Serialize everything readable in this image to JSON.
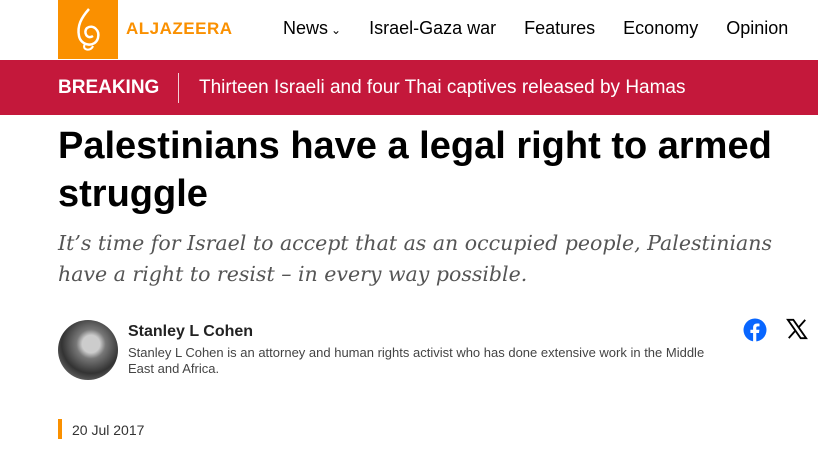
{
  "header": {
    "logo_text": "ALJAZEERA",
    "brand_color": "#fa9000",
    "nav": [
      {
        "label": "News",
        "has_dropdown": true
      },
      {
        "label": "Israel-Gaza war"
      },
      {
        "label": "Features"
      },
      {
        "label": "Economy"
      },
      {
        "label": "Opinion"
      }
    ]
  },
  "breaking": {
    "label": "BREAKING",
    "text": "Thirteen Israeli and four Thai captives released by Hamas",
    "color": "#c4183b"
  },
  "article": {
    "title": "Palestinians have a legal right to armed struggle",
    "subtitle": "It’s time for Israel to accept that as an occupied people, Palestinians have a right to resist – in every way possible.",
    "author": {
      "name": "Stanley L Cohen",
      "bio": "Stanley L Cohen is an attorney and human rights activist who has done extensive work in the Middle East and Africa."
    },
    "date": "20 Jul 2017"
  },
  "share": {
    "icons": [
      "facebook-icon",
      "x-icon"
    ]
  }
}
